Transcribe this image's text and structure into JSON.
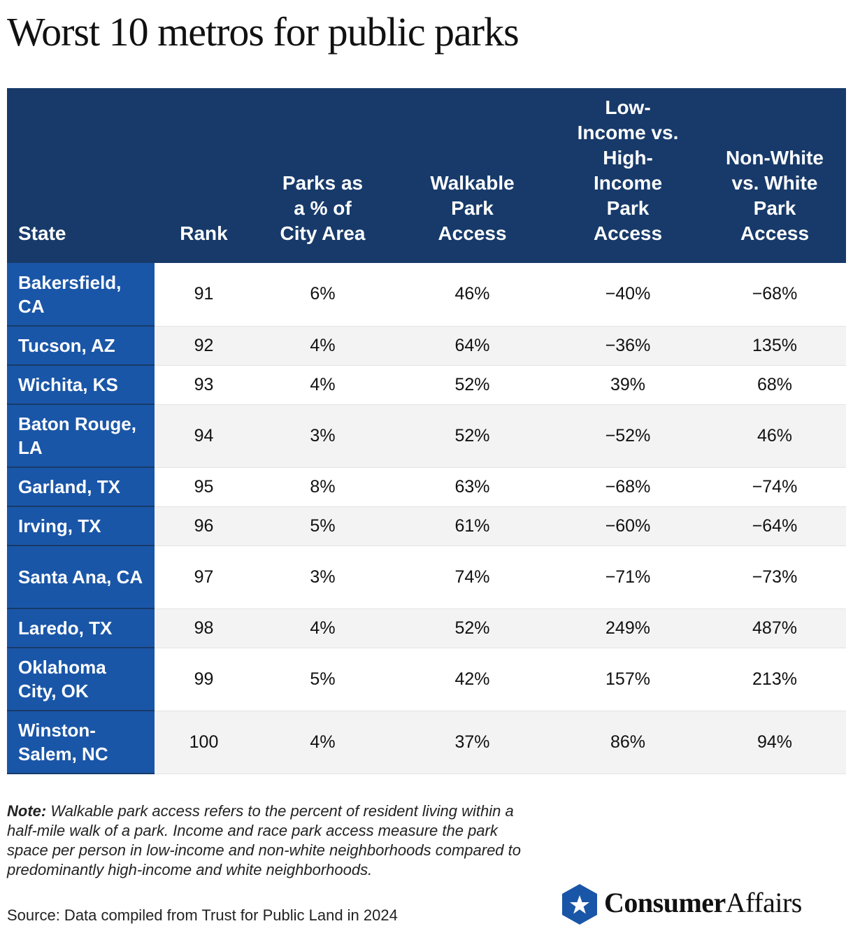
{
  "title": "Worst 10 metros for public parks",
  "columns": [
    "State",
    "Rank",
    "Parks as a % of City Area",
    "Walkable Park Access",
    "Low-Income vs. High-Income Park Access",
    "Non-White vs. White Park Access"
  ],
  "rows": [
    {
      "state": "Bakersfield, CA",
      "rank": "91",
      "parks_pct": "6%",
      "walkable": "46%",
      "income": "−40%",
      "race": "−68%"
    },
    {
      "state": "Tucson, AZ",
      "rank": "92",
      "parks_pct": "4%",
      "walkable": "64%",
      "income": "−36%",
      "race": "135%"
    },
    {
      "state": "Wichita, KS",
      "rank": "93",
      "parks_pct": "4%",
      "walkable": "52%",
      "income": "39%",
      "race": "68%"
    },
    {
      "state": "Baton Rouge, LA",
      "rank": "94",
      "parks_pct": "3%",
      "walkable": "52%",
      "income": "−52%",
      "race": "46%"
    },
    {
      "state": "Garland, TX",
      "rank": "95",
      "parks_pct": "8%",
      "walkable": "63%",
      "income": "−68%",
      "race": "−74%"
    },
    {
      "state": "Irving, TX",
      "rank": "96",
      "parks_pct": "5%",
      "walkable": "61%",
      "income": "−60%",
      "race": "−64%"
    },
    {
      "state": "Santa Ana, CA",
      "rank": "97",
      "parks_pct": "3%",
      "walkable": "74%",
      "income": "−71%",
      "race": "−73%"
    },
    {
      "state": "Laredo, TX",
      "rank": "98",
      "parks_pct": "4%",
      "walkable": "52%",
      "income": "249%",
      "race": "487%"
    },
    {
      "state": "Oklahoma City, OK",
      "rank": "99",
      "parks_pct": "5%",
      "walkable": "42%",
      "income": "157%",
      "race": "213%"
    },
    {
      "state": "Winston-Salem, NC",
      "rank": "100",
      "parks_pct": "4%",
      "walkable": "37%",
      "income": "86%",
      "race": "94%"
    }
  ],
  "note_label": "Note:",
  "note_text": " Walkable park access refers to the percent of resident living within a half-mile walk of a park. Income and race park access measure the park space per person in low-income and non-white neighborhoods compared to predominantly high-income and white neighborhoods.",
  "source": "Source: Data compiled from Trust for Public Land in 2024",
  "logo": {
    "part1": "Consumer",
    "part2": "Affairs",
    "icon": "star-hexagon-icon"
  },
  "colors": {
    "header_bg": "#173a6a",
    "state_bg": "#1a56a7",
    "alt_row": "#f3f3f3"
  },
  "chart_data": {
    "type": "table",
    "title": "Worst 10 metros for public parks",
    "columns": [
      "State",
      "Rank",
      "Parks as a % of City Area",
      "Walkable Park Access",
      "Low-Income vs. High-Income Park Access",
      "Non-White vs. White Park Access"
    ],
    "rows": [
      [
        "Bakersfield, CA",
        91,
        "6%",
        "46%",
        "−40%",
        "−68%"
      ],
      [
        "Tucson, AZ",
        92,
        "4%",
        "64%",
        "−36%",
        "135%"
      ],
      [
        "Wichita, KS",
        93,
        "4%",
        "52%",
        "39%",
        "68%"
      ],
      [
        "Baton Rouge, LA",
        94,
        "3%",
        "52%",
        "−52%",
        "46%"
      ],
      [
        "Garland, TX",
        95,
        "8%",
        "63%",
        "−68%",
        "−74%"
      ],
      [
        "Irving, TX",
        96,
        "5%",
        "61%",
        "−60%",
        "−64%"
      ],
      [
        "Santa Ana, CA",
        97,
        "3%",
        "74%",
        "−71%",
        "−73%"
      ],
      [
        "Laredo, TX",
        98,
        "4%",
        "52%",
        "249%",
        "487%"
      ],
      [
        "Oklahoma City, OK",
        99,
        "5%",
        "42%",
        "157%",
        "213%"
      ],
      [
        "Winston-Salem, NC",
        100,
        "4%",
        "37%",
        "86%",
        "94%"
      ]
    ]
  }
}
